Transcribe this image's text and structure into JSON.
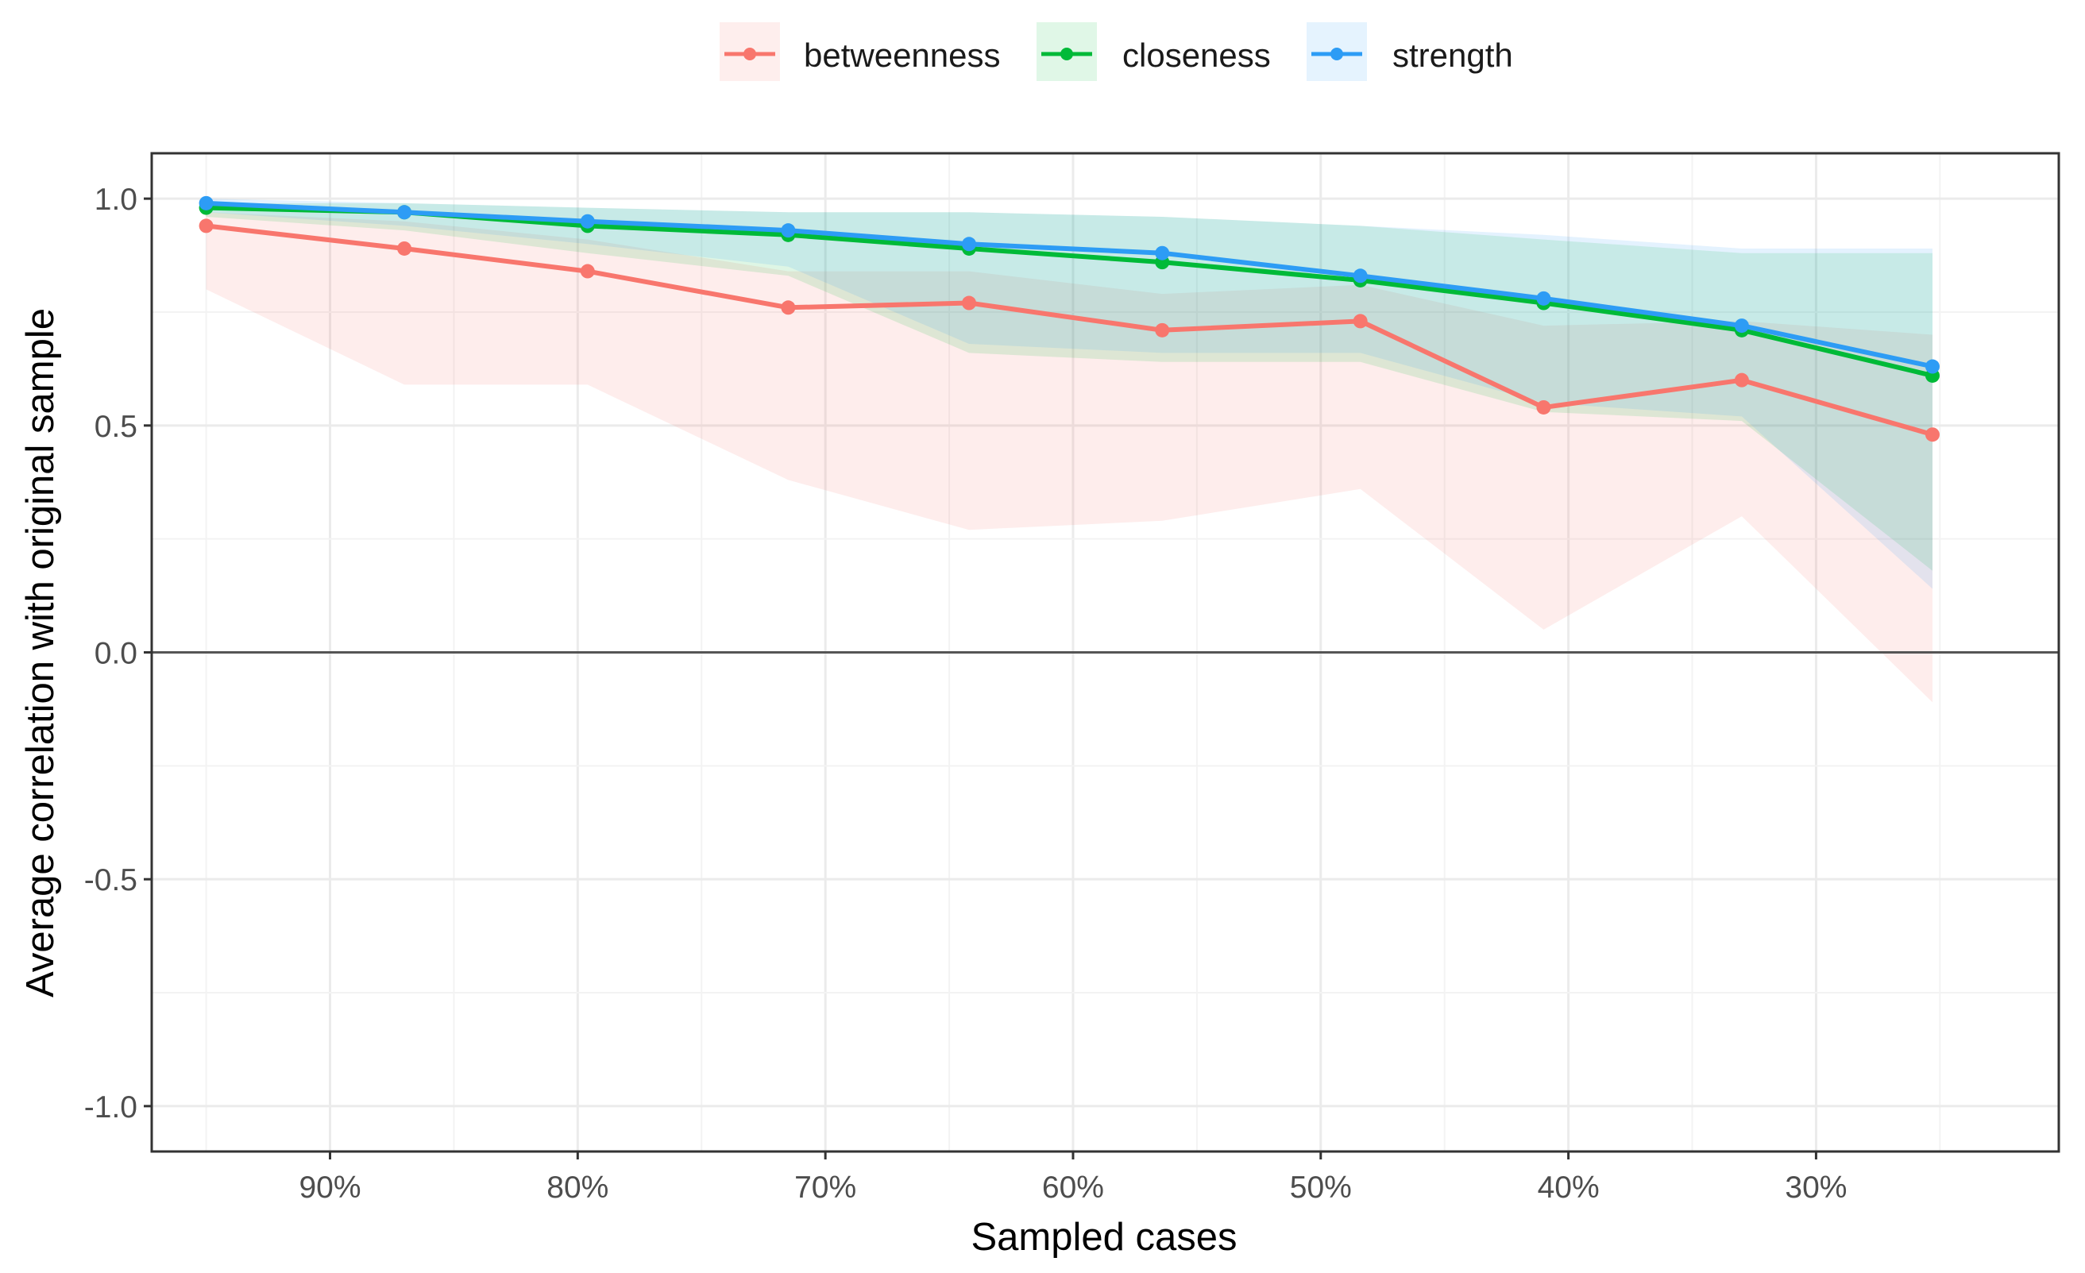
{
  "chart_data": {
    "type": "line",
    "xlabel": "Sampled cases",
    "ylabel": "Average correlation with original sample",
    "x_reversed": true,
    "xlim": [
      97.2,
      20.2
    ],
    "ylim": [
      -1.1,
      1.1
    ],
    "x_ticks": [
      {
        "value": 90,
        "label": "90%"
      },
      {
        "value": 80,
        "label": "80%"
      },
      {
        "value": 70,
        "label": "70%"
      },
      {
        "value": 60,
        "label": "60%"
      },
      {
        "value": 50,
        "label": "50%"
      },
      {
        "value": 40,
        "label": "40%"
      },
      {
        "value": 30,
        "label": "30%"
      }
    ],
    "y_ticks": [
      {
        "value": 1.0,
        "label": "1.0"
      },
      {
        "value": 0.5,
        "label": "0.5"
      },
      {
        "value": 0.0,
        "label": "0.0"
      },
      {
        "value": -0.5,
        "label": "-0.5"
      },
      {
        "value": -1.0,
        "label": "-1.0"
      }
    ],
    "x": [
      95,
      87,
      79.6,
      71.5,
      64.2,
      56.4,
      48.4,
      41,
      33,
      25.3
    ],
    "grid": true,
    "legend_position": "top",
    "series": [
      {
        "name": "betweenness",
        "color": "#F8766D",
        "values": [
          0.94,
          0.89,
          0.84,
          0.76,
          0.77,
          0.71,
          0.73,
          0.54,
          0.6,
          0.48
        ],
        "lower": [
          0.8,
          0.59,
          0.59,
          0.38,
          0.27,
          0.29,
          0.36,
          0.05,
          0.3,
          -0.11
        ],
        "upper": [
          0.97,
          0.95,
          0.91,
          0.84,
          0.84,
          0.79,
          0.81,
          0.72,
          0.73,
          0.7
        ]
      },
      {
        "name": "closeness",
        "color": "#00BA38",
        "values": [
          0.98,
          0.97,
          0.94,
          0.92,
          0.89,
          0.86,
          0.82,
          0.77,
          0.71,
          0.61
        ],
        "lower": [
          0.96,
          0.93,
          0.88,
          0.83,
          0.66,
          0.64,
          0.64,
          0.53,
          0.51,
          0.18
        ],
        "upper": [
          0.99,
          0.99,
          0.98,
          0.97,
          0.97,
          0.96,
          0.94,
          0.91,
          0.88,
          0.88
        ]
      },
      {
        "name": "strength",
        "color": "#2D9CF5",
        "values": [
          0.99,
          0.97,
          0.95,
          0.93,
          0.9,
          0.88,
          0.83,
          0.78,
          0.72,
          0.63
        ],
        "lower": [
          0.97,
          0.94,
          0.9,
          0.85,
          0.68,
          0.66,
          0.66,
          0.55,
          0.52,
          0.14
        ],
        "upper": [
          1.0,
          0.99,
          0.98,
          0.97,
          0.97,
          0.96,
          0.94,
          0.92,
          0.89,
          0.89
        ]
      }
    ]
  }
}
